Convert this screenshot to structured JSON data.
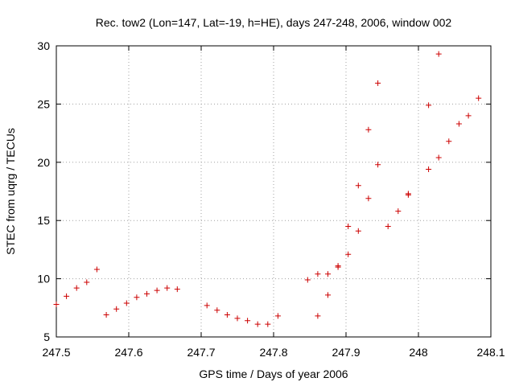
{
  "chart_data": {
    "type": "scatter",
    "title": "Rec. tow2 (Lon=147, Lat=-19, h=HE), days 247-248, 2006, window 002",
    "xlabel": "GPS time / Days of year 2006",
    "ylabel": "STEC from uqrg / TECUs",
    "xlim": [
      247.5,
      248.1
    ],
    "ylim": [
      5,
      30
    ],
    "xticks": [
      247.5,
      247.6,
      247.7,
      247.8,
      247.9,
      248.0,
      248.1
    ],
    "xtick_labels": [
      "247.5",
      "247.6",
      "247.7",
      "247.8",
      "247.9",
      "248",
      "248.1"
    ],
    "yticks": [
      5,
      10,
      15,
      20,
      25,
      30
    ],
    "ytick_labels": [
      "5",
      "10",
      "15",
      "20",
      "25",
      "30"
    ],
    "grid": true,
    "marker": "+",
    "color": "#cc0000",
    "series": [
      {
        "points": [
          [
            247.5,
            7.8
          ],
          [
            247.514,
            8.5
          ],
          [
            247.528,
            9.2
          ],
          [
            247.542,
            9.7
          ],
          [
            247.556,
            10.8
          ],
          [
            247.569,
            6.9
          ],
          [
            247.583,
            7.4
          ],
          [
            247.597,
            7.9
          ],
          [
            247.611,
            8.4
          ],
          [
            247.625,
            8.7
          ],
          [
            247.639,
            9.0
          ],
          [
            247.653,
            9.2
          ],
          [
            247.667,
            9.1
          ],
          [
            247.708,
            7.7
          ],
          [
            247.722,
            7.3
          ],
          [
            247.736,
            6.9
          ],
          [
            247.75,
            6.6
          ],
          [
            247.764,
            6.4
          ],
          [
            247.778,
            6.1
          ],
          [
            247.792,
            6.1
          ],
          [
            247.806,
            6.8
          ],
          [
            247.847,
            9.9
          ],
          [
            247.861,
            10.4
          ],
          [
            247.861,
            6.8
          ],
          [
            247.875,
            10.4
          ],
          [
            247.875,
            8.6
          ],
          [
            247.889,
            11.0
          ],
          [
            247.889,
            11.1
          ],
          [
            247.903,
            12.1
          ],
          [
            247.903,
            14.5
          ],
          [
            247.917,
            14.1
          ],
          [
            247.917,
            18.0
          ],
          [
            247.931,
            16.9
          ],
          [
            247.931,
            22.8
          ],
          [
            247.944,
            19.8
          ],
          [
            247.944,
            26.8
          ],
          [
            247.958,
            14.5
          ],
          [
            247.972,
            15.8
          ],
          [
            247.986,
            17.2
          ],
          [
            247.986,
            17.3
          ],
          [
            248.014,
            19.4
          ],
          [
            248.014,
            24.9
          ],
          [
            248.028,
            20.4
          ],
          [
            248.028,
            29.3
          ],
          [
            248.042,
            21.8
          ],
          [
            248.056,
            23.3
          ],
          [
            248.069,
            24.0
          ],
          [
            248.083,
            25.5
          ]
        ]
      }
    ]
  }
}
